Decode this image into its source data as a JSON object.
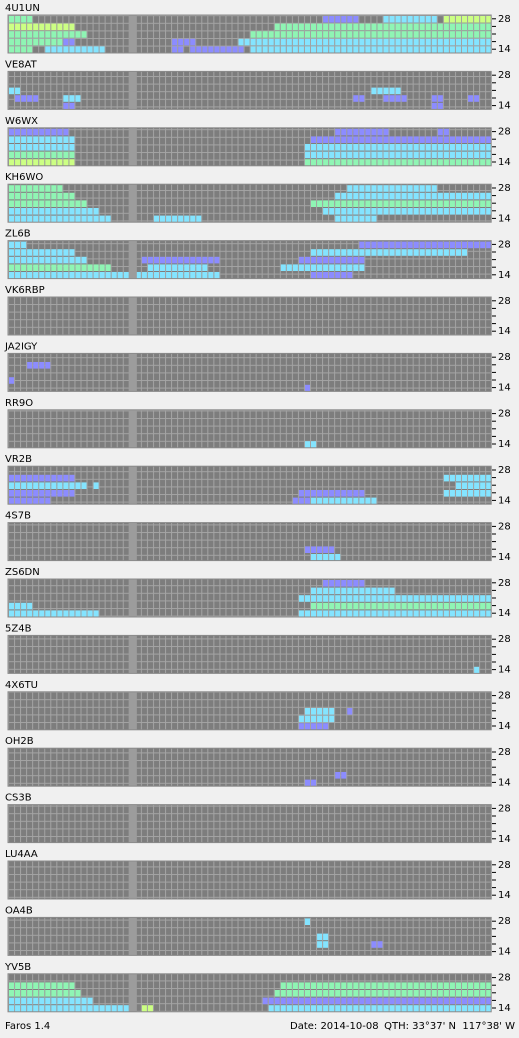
{
  "band_axis": {
    "top": 28,
    "bottom": 14
  },
  "panels": [
    {
      "station": "4U1UN",
      "runs": [
        [
          0,
          0,
          3,
          3
        ],
        [
          0,
          52,
          57,
          1
        ],
        [
          0,
          62,
          70,
          2
        ],
        [
          0,
          72,
          79,
          4
        ],
        [
          1,
          0,
          10,
          4
        ],
        [
          1,
          44,
          79,
          3
        ],
        [
          2,
          0,
          12,
          3
        ],
        [
          2,
          40,
          79,
          3
        ],
        [
          3,
          0,
          8,
          3
        ],
        [
          3,
          9,
          10,
          1
        ],
        [
          3,
          27,
          30,
          1
        ],
        [
          3,
          38,
          79,
          2
        ],
        [
          4,
          0,
          3,
          3
        ],
        [
          4,
          6,
          15,
          2
        ],
        [
          4,
          27,
          28,
          1
        ],
        [
          4,
          30,
          38,
          1
        ],
        [
          4,
          40,
          79,
          2
        ]
      ]
    },
    {
      "station": "VE8AT",
      "runs": [
        [
          2,
          0,
          1,
          2
        ],
        [
          2,
          60,
          64,
          2
        ],
        [
          3,
          1,
          4,
          1
        ],
        [
          3,
          9,
          11,
          2
        ],
        [
          3,
          57,
          58,
          1
        ],
        [
          3,
          62,
          65,
          1
        ],
        [
          3,
          70,
          71,
          1
        ],
        [
          3,
          76,
          77,
          1
        ],
        [
          4,
          9,
          10,
          1
        ],
        [
          4,
          70,
          71,
          1
        ]
      ]
    },
    {
      "station": "W6WX",
      "runs": [
        [
          0,
          0,
          9,
          1
        ],
        [
          0,
          54,
          62,
          1
        ],
        [
          0,
          71,
          72,
          1
        ],
        [
          1,
          0,
          10,
          2
        ],
        [
          1,
          50,
          79,
          1
        ],
        [
          2,
          0,
          10,
          2
        ],
        [
          2,
          49,
          79,
          2
        ],
        [
          3,
          0,
          10,
          3
        ],
        [
          3,
          49,
          79,
          2
        ],
        [
          4,
          0,
          10,
          4
        ],
        [
          4,
          49,
          79,
          3
        ]
      ]
    },
    {
      "station": "KH6WO",
      "runs": [
        [
          0,
          0,
          8,
          3
        ],
        [
          0,
          56,
          70,
          2
        ],
        [
          1,
          0,
          10,
          3
        ],
        [
          1,
          54,
          79,
          2
        ],
        [
          2,
          0,
          12,
          3
        ],
        [
          2,
          50,
          79,
          3
        ],
        [
          3,
          0,
          14,
          2
        ],
        [
          3,
          52,
          79,
          2
        ],
        [
          4,
          0,
          16,
          2
        ],
        [
          4,
          24,
          31,
          2
        ],
        [
          4,
          54,
          60,
          2
        ]
      ]
    },
    {
      "station": "ZL6B",
      "runs": [
        [
          0,
          0,
          2,
          2
        ],
        [
          0,
          58,
          79,
          1
        ],
        [
          1,
          0,
          10,
          2
        ],
        [
          1,
          50,
          75,
          2
        ],
        [
          2,
          0,
          12,
          2
        ],
        [
          2,
          22,
          34,
          1
        ],
        [
          2,
          48,
          58,
          1
        ],
        [
          3,
          0,
          16,
          3
        ],
        [
          3,
          23,
          32,
          2
        ],
        [
          3,
          45,
          58,
          2
        ],
        [
          4,
          0,
          19,
          2
        ],
        [
          4,
          21,
          34,
          2
        ],
        [
          4,
          50,
          56,
          1
        ]
      ]
    },
    {
      "station": "VK6RBP",
      "runs": []
    },
    {
      "station": "JA2IGY",
      "runs": [
        [
          1,
          3,
          6,
          1
        ],
        [
          3,
          0,
          0,
          1
        ],
        [
          4,
          49,
          49,
          1
        ]
      ]
    },
    {
      "station": "RR9O",
      "runs": [
        [
          4,
          49,
          50,
          2
        ]
      ]
    },
    {
      "station": "VR2B",
      "runs": [
        [
          1,
          0,
          10,
          1
        ],
        [
          1,
          72,
          79,
          2
        ],
        [
          2,
          0,
          12,
          2
        ],
        [
          2,
          14,
          14,
          2
        ],
        [
          2,
          74,
          79,
          2
        ],
        [
          3,
          0,
          10,
          1
        ],
        [
          3,
          48,
          58,
          1
        ],
        [
          3,
          72,
          79,
          2
        ],
        [
          4,
          0,
          6,
          1
        ],
        [
          4,
          47,
          49,
          1
        ],
        [
          4,
          50,
          60,
          2
        ]
      ]
    },
    {
      "station": "4S7B",
      "runs": [
        [
          3,
          49,
          53,
          1
        ],
        [
          4,
          50,
          54,
          2
        ]
      ]
    },
    {
      "station": "ZS6DN",
      "runs": [
        [
          0,
          52,
          58,
          1
        ],
        [
          1,
          50,
          63,
          2
        ],
        [
          2,
          48,
          79,
          2
        ],
        [
          3,
          0,
          3,
          2
        ],
        [
          3,
          50,
          79,
          3
        ],
        [
          4,
          0,
          14,
          2
        ],
        [
          4,
          48,
          79,
          2
        ]
      ]
    },
    {
      "station": "5Z4B",
      "runs": [
        [
          4,
          77,
          77,
          2
        ]
      ]
    },
    {
      "station": "4X6TU",
      "runs": [
        [
          2,
          49,
          53,
          2
        ],
        [
          2,
          56,
          56,
          1
        ],
        [
          3,
          48,
          53,
          2
        ],
        [
          4,
          48,
          52,
          1
        ]
      ]
    },
    {
      "station": "OH2B",
      "runs": [
        [
          3,
          54,
          55,
          1
        ],
        [
          4,
          49,
          50,
          1
        ]
      ]
    },
    {
      "station": "CS3B",
      "runs": []
    },
    {
      "station": "LU4AA",
      "runs": []
    },
    {
      "station": "OA4B",
      "runs": [
        [
          0,
          49,
          49,
          2
        ],
        [
          2,
          51,
          52,
          2
        ],
        [
          3,
          51,
          52,
          2
        ],
        [
          3,
          60,
          61,
          1
        ]
      ]
    },
    {
      "station": "YV5B",
      "runs": [
        [
          1,
          0,
          10,
          3
        ],
        [
          1,
          45,
          79,
          3
        ],
        [
          2,
          0,
          11,
          3
        ],
        [
          2,
          44,
          79,
          3
        ],
        [
          3,
          0,
          13,
          2
        ],
        [
          3,
          42,
          79,
          1
        ],
        [
          4,
          0,
          19,
          2
        ],
        [
          4,
          22,
          23,
          4
        ],
        [
          4,
          43,
          79,
          2
        ]
      ]
    }
  ],
  "footer": {
    "app": "Faros 1.4",
    "date": "Date: 2014-10-08",
    "qth": "QTH: 33°37' N  117°38' W"
  }
}
